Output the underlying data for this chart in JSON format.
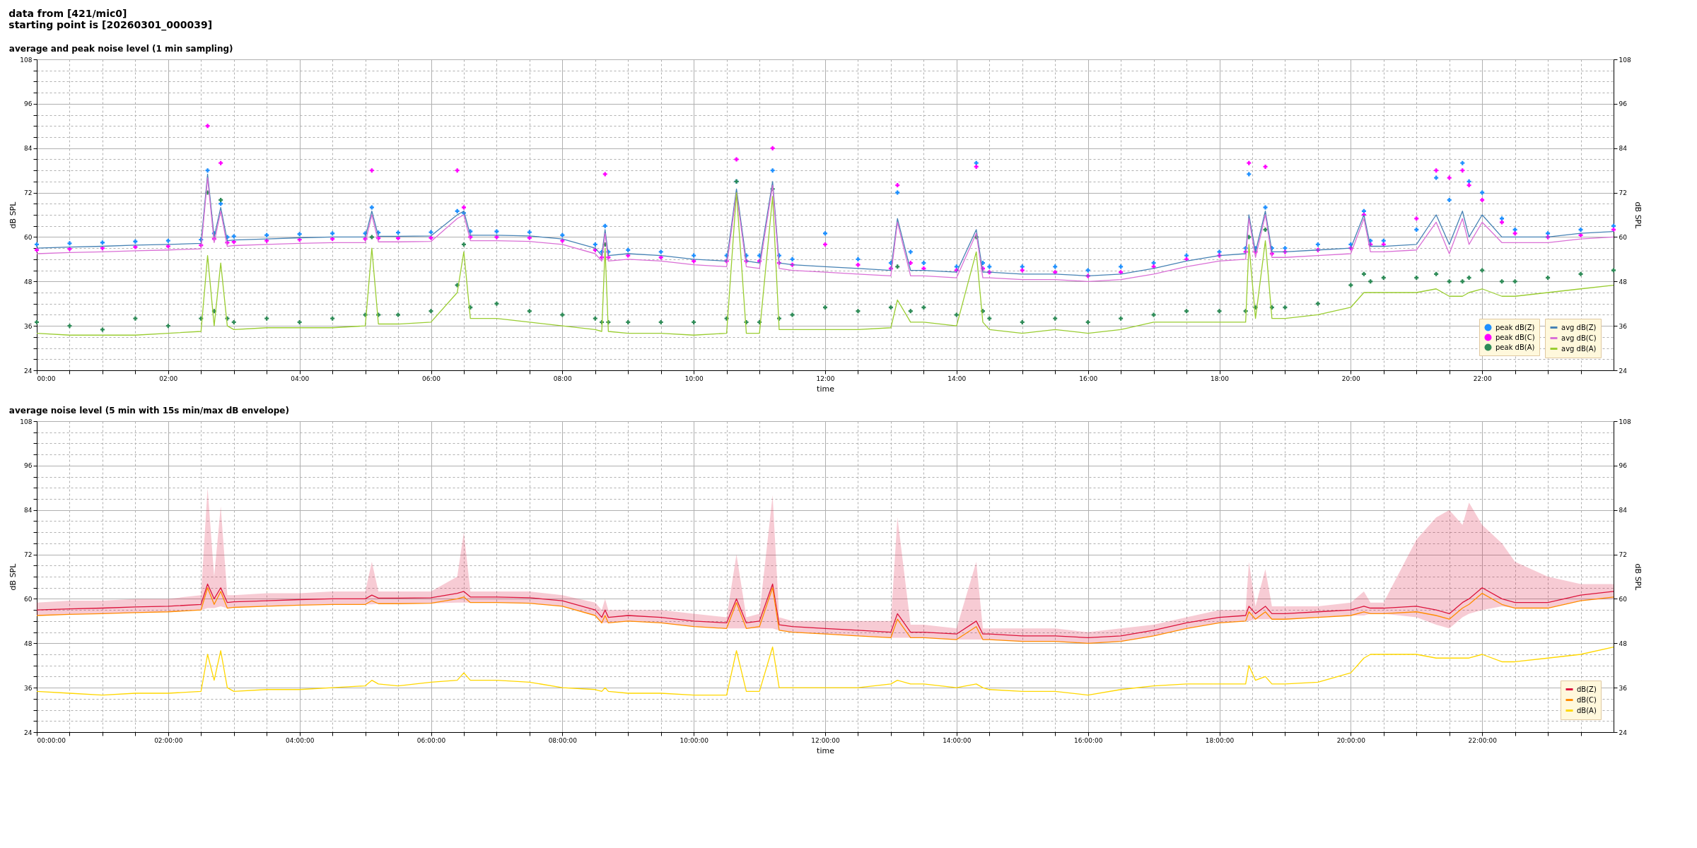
{
  "chart_data": [
    {
      "type": "line",
      "title": "average and peak noise level (1 min sampling)",
      "annotations": [
        "data from [421/mic0]",
        "starting point is [20260301_000039]"
      ],
      "xlabel": "time",
      "ylabel": "dB SPL",
      "y2label": "dB SPL",
      "legend": "bottom right",
      "grid": true,
      "xlim": [
        0,
        24
      ],
      "ylim": [
        24,
        108
      ],
      "y2lim": [
        24,
        108
      ],
      "xticks": [
        {
          "value": 0,
          "label": "00:00"
        },
        {
          "value": 0.5,
          "label": null
        },
        {
          "value": 1,
          "label": null
        },
        {
          "value": 1.5,
          "label": null
        },
        {
          "value": 2,
          "label": "02:00"
        },
        {
          "value": 2.5,
          "label": null
        },
        {
          "value": 3,
          "label": null
        },
        {
          "value": 3.5,
          "label": null
        },
        {
          "value": 4,
          "label": "04:00"
        },
        {
          "value": 4.5,
          "label": null
        },
        {
          "value": 5,
          "label": null
        },
        {
          "value": 5.5,
          "label": null
        },
        {
          "value": 6,
          "label": "06:00"
        },
        {
          "value": 6.5,
          "label": null
        },
        {
          "value": 7,
          "label": null
        },
        {
          "value": 7.5,
          "label": null
        },
        {
          "value": 8,
          "label": "08:00"
        },
        {
          "value": 8.5,
          "label": null
        },
        {
          "value": 9,
          "label": null
        },
        {
          "value": 9.5,
          "label": null
        },
        {
          "value": 10,
          "label": "10:00"
        },
        {
          "value": 10.5,
          "label": null
        },
        {
          "value": 11,
          "label": null
        },
        {
          "value": 11.5,
          "label": null
        },
        {
          "value": 12,
          "label": "12:00"
        },
        {
          "value": 12.5,
          "label": null
        },
        {
          "value": 13,
          "label": null
        },
        {
          "value": 13.5,
          "label": null
        },
        {
          "value": 14,
          "label": "14:00"
        },
        {
          "value": 14.5,
          "label": null
        },
        {
          "value": 15,
          "label": null
        },
        {
          "value": 15.5,
          "label": null
        },
        {
          "value": 16,
          "label": "16:00"
        },
        {
          "value": 16.5,
          "label": null
        },
        {
          "value": 17,
          "label": null
        },
        {
          "value": 17.5,
          "label": null
        },
        {
          "value": 18,
          "label": "18:00"
        },
        {
          "value": 18.5,
          "label": null
        },
        {
          "value": 19,
          "label": null
        },
        {
          "value": 19.5,
          "label": null
        },
        {
          "value": 20,
          "label": "20:00"
        },
        {
          "value": 20.5,
          "label": null
        },
        {
          "value": 21,
          "label": null
        },
        {
          "value": 21.5,
          "label": null
        },
        {
          "value": 22,
          "label": "22:00"
        },
        {
          "value": 22.5,
          "label": null
        },
        {
          "value": 23,
          "label": null
        },
        {
          "value": 23.5,
          "label": null
        }
      ],
      "yticks": [
        24,
        {
          "value": 27,
          "label": null
        },
        {
          "value": 30,
          "label": null
        },
        {
          "value": 33,
          "label": null
        },
        36,
        {
          "value": 39,
          "label": null
        },
        {
          "value": 42,
          "label": null
        },
        {
          "value": 45,
          "label": null
        },
        48,
        {
          "value": 51,
          "label": null
        },
        {
          "value": 54,
          "label": null
        },
        {
          "value": 57,
          "label": null
        },
        60,
        {
          "value": 63,
          "label": null
        },
        {
          "value": 66,
          "label": null
        },
        {
          "value": 69,
          "label": null
        },
        72,
        {
          "value": 75,
          "label": null
        },
        {
          "value": 78,
          "label": null
        },
        {
          "value": 81,
          "label": null
        },
        84,
        {
          "value": 87,
          "label": null
        },
        {
          "value": 90,
          "label": null
        },
        {
          "value": 93,
          "label": null
        },
        96,
        {
          "value": 99,
          "label": null
        },
        {
          "value": 102,
          "label": null
        },
        {
          "value": 105,
          "label": null
        },
        108
      ],
      "y2ticks": [
        24,
        36,
        48,
        60,
        72,
        84,
        96,
        108
      ],
      "x": [
        0,
        0.5,
        1,
        1.5,
        2,
        2.5,
        2.6,
        2.7,
        2.8,
        2.9,
        3,
        3.5,
        4,
        4.5,
        5,
        5.1,
        5.2,
        5.5,
        6,
        6.4,
        6.5,
        6.6,
        7,
        7.5,
        8,
        8.5,
        8.6,
        8.65,
        8.7,
        9,
        9.5,
        10,
        10.5,
        10.65,
        10.8,
        11,
        11.2,
        11.3,
        11.5,
        12,
        12.5,
        13,
        13.1,
        13.3,
        13.5,
        14,
        14.3,
        14.4,
        14.5,
        15,
        15.5,
        16,
        16.5,
        17,
        17.5,
        18,
        18.4,
        18.45,
        18.55,
        18.7,
        18.8,
        19,
        19.5,
        20,
        20.2,
        20.3,
        20.5,
        21,
        21.3,
        21.5,
        21.7,
        21.8,
        22,
        22.3,
        22.5,
        23,
        23.5,
        24
      ],
      "series": [
        {
          "name": "peak dB(Z)",
          "type": "scatter",
          "marker": "cross",
          "color": "#1e90ff",
          "values": [
            58,
            58.3,
            58.5,
            58.8,
            59,
            59.3,
            78,
            61,
            69,
            60,
            60.2,
            60.5,
            60.8,
            61,
            61,
            68,
            61.2,
            61.2,
            61.3,
            67,
            66.5,
            61.5,
            61.5,
            61.3,
            60.5,
            58,
            56,
            63,
            56,
            56.5,
            56,
            55,
            55,
            75,
            55,
            55,
            78,
            55,
            54,
            61,
            54,
            53,
            72,
            56,
            53,
            52,
            80,
            53,
            52,
            52,
            52,
            51,
            52,
            53,
            55,
            56,
            57,
            77,
            57,
            68,
            57,
            57,
            58,
            58,
            67,
            59,
            59,
            62,
            76,
            70,
            80,
            75,
            72,
            65,
            62,
            61,
            62,
            63
          ]
        },
        {
          "name": "peak dB(C)",
          "type": "scatter",
          "marker": "cross",
          "color": "#ff00ff",
          "values": [
            56.5,
            56.8,
            57,
            57.3,
            57.5,
            57.8,
            90,
            59.5,
            80,
            58.5,
            58.7,
            59,
            59.3,
            59.5,
            59.5,
            78,
            59.7,
            59.7,
            59.8,
            78,
            68,
            60,
            60,
            59.8,
            59,
            56.5,
            54.5,
            77,
            54.5,
            55,
            54.5,
            53.5,
            53.5,
            81,
            53.5,
            53.5,
            84,
            53,
            52.5,
            58,
            52.5,
            51.5,
            74,
            53,
            51.5,
            51,
            79,
            51.5,
            50.5,
            51,
            50.5,
            49.5,
            50.5,
            52,
            54,
            55,
            56,
            80,
            56,
            79,
            55.5,
            56,
            56.5,
            57,
            66,
            58,
            58,
            65,
            78,
            76,
            78,
            74,
            70,
            64,
            61,
            60,
            60.5,
            62
          ]
        },
        {
          "name": "peak dB(A)",
          "type": "scatter",
          "marker": "cross",
          "color": "#2e8b57",
          "values": [
            37,
            36,
            35,
            38,
            36,
            38,
            72,
            40,
            70,
            38,
            37,
            38,
            37,
            38,
            39,
            60,
            39,
            39,
            40,
            47,
            58,
            41,
            42,
            40,
            39,
            38,
            37,
            58,
            37,
            37,
            37,
            37,
            38,
            75,
            37,
            37,
            73,
            38,
            39,
            41,
            40,
            41,
            52,
            40,
            41,
            39,
            60,
            40,
            38,
            37,
            38,
            37,
            38,
            39,
            40,
            40,
            40,
            60,
            41,
            62,
            41,
            41,
            42,
            47,
            50,
            48,
            49,
            49,
            50,
            48,
            48,
            49,
            51,
            48,
            48,
            49,
            50,
            51
          ]
        },
        {
          "name": "avg dB(Z)",
          "color": "#4682b4",
          "values": [
            57,
            57.3,
            57.5,
            57.8,
            58,
            58.3,
            77,
            60,
            68,
            59,
            59.2,
            59.5,
            59.8,
            60,
            60,
            67,
            60.2,
            60.2,
            60.3,
            66,
            67,
            60.5,
            60.5,
            60.3,
            59.5,
            57,
            55,
            62,
            55,
            55.5,
            55,
            54,
            53.5,
            73,
            53.5,
            53,
            75,
            53,
            52.5,
            52,
            51.5,
            51,
            65,
            51,
            51,
            50.5,
            62,
            50.5,
            50.5,
            50,
            50,
            49.5,
            50,
            51.5,
            53.5,
            55,
            55.5,
            66,
            56,
            67,
            56,
            56,
            56.5,
            57,
            66,
            57.5,
            57.5,
            58,
            66,
            58,
            67,
            60,
            66,
            60,
            60,
            60,
            61,
            61.5
          ]
        },
        {
          "name": "avg dB(C)",
          "color": "#da70d6",
          "values": [
            55.5,
            55.8,
            56,
            56.3,
            56.5,
            56.8,
            76,
            58.5,
            67,
            57.5,
            57.7,
            58,
            58.3,
            58.5,
            58.5,
            66,
            58.7,
            58.7,
            58.8,
            65,
            66,
            59,
            59,
            58.8,
            58,
            55.5,
            53.5,
            61,
            53.5,
            54,
            53.5,
            52.5,
            52,
            72,
            52,
            51.5,
            74,
            51.5,
            51,
            50.5,
            50,
            49.5,
            64,
            49.5,
            49.5,
            49,
            61,
            49,
            49,
            48.5,
            48.5,
            48,
            48.5,
            50,
            52,
            53.5,
            54,
            65,
            54.5,
            66,
            54.5,
            54.5,
            55,
            55.5,
            65,
            56,
            56,
            56.5,
            64,
            55.5,
            65,
            58,
            64,
            58.5,
            58.5,
            58.5,
            59.5,
            60
          ]
        },
        {
          "name": "avg dB(A)",
          "color": "#9acd32",
          "values": [
            34,
            33.5,
            33.5,
            33.5,
            34,
            34.5,
            55,
            36,
            53,
            36,
            35,
            35.5,
            35.5,
            35.5,
            36,
            57,
            36.5,
            36.5,
            37,
            45,
            56,
            38,
            38,
            37,
            36,
            35,
            34.5,
            57,
            34.5,
            34,
            34,
            33.5,
            34,
            72,
            34,
            34,
            71,
            35,
            35,
            35,
            35,
            35.5,
            43,
            37,
            37,
            36,
            56,
            37,
            35,
            34,
            35,
            34,
            35,
            37,
            37,
            37,
            37,
            58,
            38,
            59,
            38,
            38,
            39,
            41,
            45,
            45,
            45,
            45,
            46,
            44,
            44,
            45,
            46,
            44,
            44,
            45,
            46,
            47
          ]
        }
      ]
    },
    {
      "type": "line",
      "title": "average noise level (5 min with 15s min/max dB envelope)",
      "xlabel": "time",
      "ylabel": "dB SPL",
      "y2label": "dB SPL",
      "legend": "bottom right",
      "grid": true,
      "xlim": [
        0,
        24
      ],
      "ylim": [
        24,
        108
      ],
      "y2lim": [
        24,
        108
      ],
      "xticks": [
        {
          "value": 0,
          "label": "00:00:00"
        },
        {
          "value": 0.5,
          "label": null
        },
        {
          "value": 1,
          "label": null
        },
        {
          "value": 1.5,
          "label": null
        },
        {
          "value": 2,
          "label": "02:00:00"
        },
        {
          "value": 2.5,
          "label": null
        },
        {
          "value": 3,
          "label": null
        },
        {
          "value": 3.5,
          "label": null
        },
        {
          "value": 4,
          "label": "04:00:00"
        },
        {
          "value": 4.5,
          "label": null
        },
        {
          "value": 5,
          "label": null
        },
        {
          "value": 5.5,
          "label": null
        },
        {
          "value": 6,
          "label": "06:00:00"
        },
        {
          "value": 6.5,
          "label": null
        },
        {
          "value": 7,
          "label": null
        },
        {
          "value": 7.5,
          "label": null
        },
        {
          "value": 8,
          "label": "08:00:00"
        },
        {
          "value": 8.5,
          "label": null
        },
        {
          "value": 9,
          "label": null
        },
        {
          "value": 9.5,
          "label": null
        },
        {
          "value": 10,
          "label": "10:00:00"
        },
        {
          "value": 10.5,
          "label": null
        },
        {
          "value": 11,
          "label": null
        },
        {
          "value": 11.5,
          "label": null
        },
        {
          "value": 12,
          "label": "12:00:00"
        },
        {
          "value": 12.5,
          "label": null
        },
        {
          "value": 13,
          "label": null
        },
        {
          "value": 13.5,
          "label": null
        },
        {
          "value": 14,
          "label": "14:00:00"
        },
        {
          "value": 14.5,
          "label": null
        },
        {
          "value": 15,
          "label": null
        },
        {
          "value": 15.5,
          "label": null
        },
        {
          "value": 16,
          "label": "16:00:00"
        },
        {
          "value": 16.5,
          "label": null
        },
        {
          "value": 17,
          "label": null
        },
        {
          "value": 17.5,
          "label": null
        },
        {
          "value": 18,
          "label": "18:00:00"
        },
        {
          "value": 18.5,
          "label": null
        },
        {
          "value": 19,
          "label": null
        },
        {
          "value": 19.5,
          "label": null
        },
        {
          "value": 20,
          "label": "20:00:00"
        },
        {
          "value": 20.5,
          "label": null
        },
        {
          "value": 21,
          "label": null
        },
        {
          "value": 21.5,
          "label": null
        },
        {
          "value": 22,
          "label": "22:00:00"
        },
        {
          "value": 22.5,
          "label": null
        },
        {
          "value": 23,
          "label": null
        },
        {
          "value": 23.5,
          "label": null
        }
      ],
      "yticks": [
        24,
        {
          "value": 27,
          "label": null
        },
        {
          "value": 30,
          "label": null
        },
        {
          "value": 33,
          "label": null
        },
        36,
        {
          "value": 39,
          "label": null
        },
        {
          "value": 42,
          "label": null
        },
        {
          "value": 45,
          "label": null
        },
        48,
        {
          "value": 51,
          "label": null
        },
        {
          "value": 54,
          "label": null
        },
        {
          "value": 57,
          "label": null
        },
        60,
        {
          "value": 63,
          "label": null
        },
        {
          "value": 66,
          "label": null
        },
        {
          "value": 69,
          "label": null
        },
        72,
        {
          "value": 75,
          "label": null
        },
        {
          "value": 78,
          "label": null
        },
        {
          "value": 81,
          "label": null
        },
        84,
        {
          "value": 87,
          "label": null
        },
        {
          "value": 90,
          "label": null
        },
        {
          "value": 93,
          "label": null
        },
        96,
        {
          "value": 99,
          "label": null
        },
        {
          "value": 102,
          "label": null
        },
        {
          "value": 105,
          "label": null
        },
        108
      ],
      "y2ticks": [
        24,
        36,
        48,
        60,
        72,
        84,
        96,
        108
      ],
      "x": [
        0,
        0.5,
        1,
        1.5,
        2,
        2.5,
        2.6,
        2.7,
        2.8,
        2.9,
        3,
        3.5,
        4,
        4.5,
        5,
        5.1,
        5.2,
        5.5,
        6,
        6.4,
        6.5,
        6.6,
        7,
        7.5,
        8,
        8.5,
        8.6,
        8.65,
        8.7,
        9,
        9.5,
        10,
        10.5,
        10.65,
        10.8,
        11,
        11.2,
        11.3,
        11.5,
        12,
        12.5,
        13,
        13.1,
        13.3,
        13.5,
        14,
        14.3,
        14.4,
        14.5,
        15,
        15.5,
        16,
        16.5,
        17,
        17.5,
        18,
        18.4,
        18.45,
        18.55,
        18.7,
        18.8,
        19,
        19.5,
        20,
        20.2,
        20.3,
        20.5,
        21,
        21.3,
        21.5,
        21.7,
        21.8,
        22,
        22.3,
        22.5,
        23,
        23.5,
        24
      ],
      "series": [
        {
          "name": "dB(Z)",
          "color": "#dc143c",
          "values": [
            57,
            57.3,
            57.5,
            57.8,
            58,
            58.5,
            64,
            60,
            63,
            59,
            59.2,
            59.5,
            59.8,
            60,
            60,
            61,
            60.2,
            60.2,
            60.3,
            61.5,
            62,
            60.5,
            60.5,
            60.3,
            59.5,
            57,
            55,
            57,
            55,
            55.5,
            55,
            54,
            53.5,
            60,
            53.5,
            54,
            64,
            53,
            52.5,
            52,
            51.5,
            51,
            56,
            51,
            51,
            50.5,
            54,
            50.5,
            50.5,
            50,
            50,
            49.5,
            50,
            51.5,
            53.5,
            55,
            55.5,
            58,
            56,
            58,
            56,
            56,
            56.5,
            57,
            58,
            57.5,
            57.5,
            58,
            57,
            56,
            59,
            60,
            63,
            60,
            59,
            59,
            61,
            62
          ],
          "lower": [
            55.5,
            55.8,
            56,
            56.3,
            56.5,
            57,
            57.5,
            57.5,
            58,
            57.5,
            57.7,
            58,
            58.3,
            58.5,
            58.5,
            58.5,
            58.7,
            58.7,
            58.8,
            59,
            59,
            59,
            59,
            58.8,
            58,
            55.5,
            53.5,
            53.5,
            53.5,
            54,
            53.5,
            52.5,
            52,
            52,
            52,
            52,
            52,
            51.5,
            51,
            50.5,
            50,
            49.5,
            49.5,
            49.5,
            49.5,
            49,
            49,
            49,
            49,
            48.5,
            48.5,
            48,
            48.5,
            50,
            52,
            53.5,
            54,
            54,
            54.5,
            54.5,
            54.5,
            54.5,
            55,
            55.5,
            55.5,
            56,
            56,
            55,
            53,
            52,
            55,
            56,
            57,
            58,
            57.5,
            57.5,
            59.5,
            60
          ],
          "upper": [
            59,
            59.5,
            59.5,
            60,
            60,
            61,
            90,
            66,
            85,
            61,
            61,
            61.5,
            61.5,
            62,
            62,
            70,
            62,
            62,
            62,
            66,
            78,
            62,
            62,
            62,
            61,
            59,
            57,
            60,
            57,
            57,
            57,
            56,
            55,
            72,
            55,
            56,
            88,
            55,
            54,
            54,
            54,
            54,
            82,
            53,
            53,
            52,
            70,
            52,
            52,
            52,
            52,
            51,
            52,
            53,
            55,
            57,
            57,
            70,
            58,
            68,
            58,
            58,
            58,
            59,
            62,
            59,
            59,
            76,
            82,
            84,
            80,
            86,
            80,
            75,
            70,
            66,
            64,
            64
          ]
        },
        {
          "name": "dB(C)",
          "color": "#ff8c00",
          "values": [
            55.5,
            55.8,
            56,
            56.3,
            56.5,
            57,
            63,
            58.5,
            62,
            57.5,
            57.7,
            58,
            58.3,
            58.5,
            58.5,
            59.5,
            58.7,
            58.7,
            58.8,
            60,
            60.5,
            59,
            59,
            58.8,
            58,
            55.5,
            53.5,
            55.5,
            53.5,
            54,
            53.5,
            52.5,
            52,
            59,
            52,
            52.5,
            63,
            51.5,
            51,
            50.5,
            50,
            49.5,
            54.5,
            49.5,
            49.5,
            49,
            52.5,
            49,
            49,
            48.5,
            48.5,
            48,
            48.5,
            50,
            52,
            53.5,
            54,
            56.5,
            54.5,
            56.5,
            54.5,
            54.5,
            55,
            55.5,
            56.5,
            56,
            56,
            56.5,
            55.5,
            54.5,
            57.5,
            58.5,
            61.5,
            58.5,
            57.5,
            57.5,
            59.5,
            60.5
          ]
        },
        {
          "name": "dB(A)",
          "color": "#ffd700",
          "values": [
            35,
            34.5,
            34,
            34.5,
            34.5,
            35,
            45,
            38,
            46,
            36,
            35,
            35.5,
            35.5,
            36,
            36.5,
            38,
            37,
            36.5,
            37.5,
            38,
            40,
            38,
            38,
            37.5,
            36,
            35.5,
            35,
            36,
            35,
            34.5,
            34.5,
            34,
            34,
            46,
            35,
            35,
            47,
            36,
            36,
            36,
            36,
            37,
            38,
            37,
            37,
            36,
            37,
            36,
            35.5,
            35,
            35,
            34,
            35.5,
            36.5,
            37,
            37,
            37,
            42,
            38,
            39,
            37,
            37,
            37.5,
            40,
            44,
            45,
            45,
            45,
            44,
            44,
            44,
            44,
            45,
            43,
            43,
            44,
            45,
            47
          ]
        }
      ]
    }
  ]
}
